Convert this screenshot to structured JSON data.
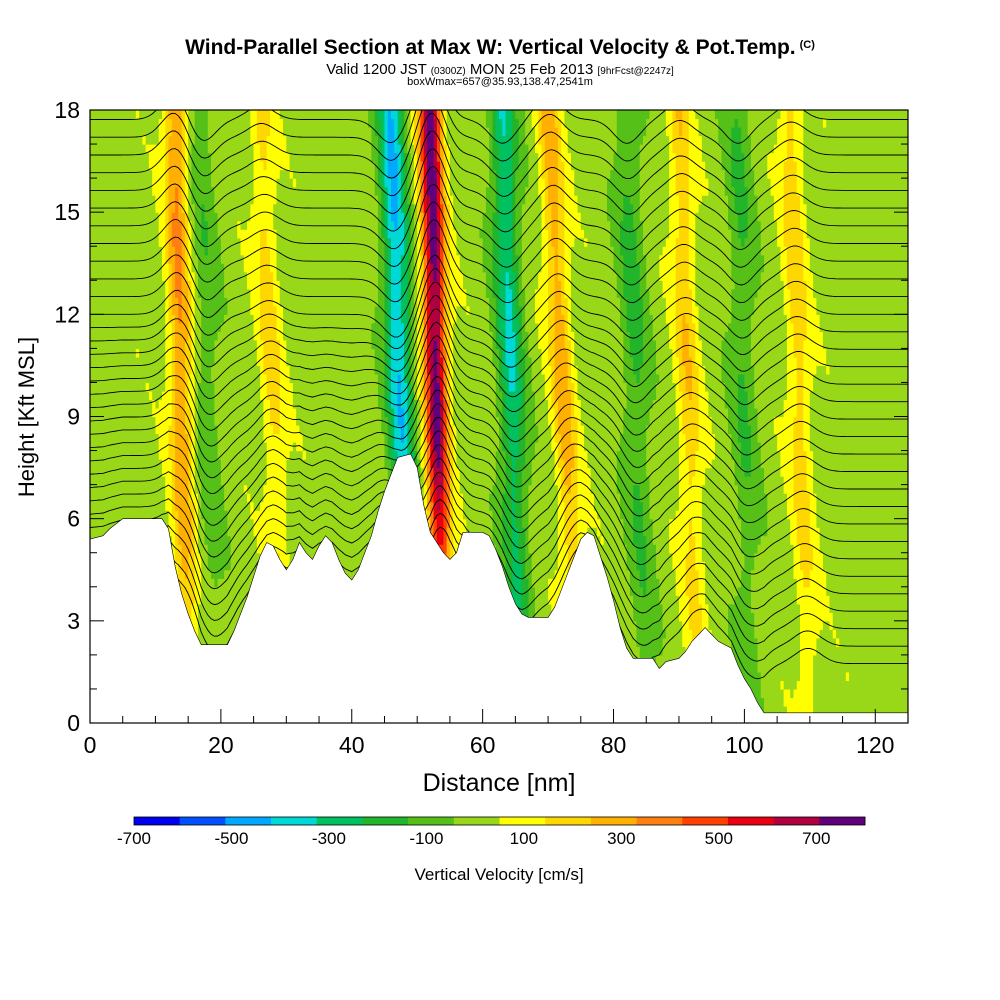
{
  "titles": {
    "main": "Wind-Parallel Section at Max W: Vertical Velocity & Pot.Temp.",
    "copyright": "(C)",
    "valid_prefix": "Valid 1200 JST",
    "valid_utc": "(0300Z)",
    "valid_date": "MON 25 Feb 2013",
    "forecast": "[9hrFcst@2247z]",
    "box_info": "boxWmax=657@35.93,138.47,2541m"
  },
  "chart_data": {
    "type": "heatmap",
    "xlabel": "Distance [nm]",
    "ylabel": "Height [Kft MSL]",
    "xlim": [
      0,
      125
    ],
    "ylim": [
      0,
      18
    ],
    "x_ticks": [
      0,
      20,
      40,
      60,
      80,
      100,
      120
    ],
    "y_ticks": [
      0,
      3,
      6,
      9,
      12,
      15,
      18
    ],
    "x_minor_step": 5,
    "y_minor_step": 1,
    "terrain_kft": [
      [
        0,
        5.4
      ],
      [
        2,
        5.5
      ],
      [
        3,
        5.7
      ],
      [
        5,
        6.0
      ],
      [
        11,
        6.0
      ],
      [
        12,
        5.7
      ],
      [
        13,
        4.6
      ],
      [
        14,
        3.8
      ],
      [
        15,
        3.2
      ],
      [
        16,
        2.7
      ],
      [
        17,
        2.3
      ],
      [
        21,
        2.3
      ],
      [
        22,
        2.7
      ],
      [
        23,
        3.2
      ],
      [
        24,
        3.7
      ],
      [
        25,
        4.3
      ],
      [
        26,
        4.9
      ],
      [
        27,
        5.3
      ],
      [
        28,
        5.2
      ],
      [
        29,
        4.8
      ],
      [
        30,
        4.5
      ],
      [
        31,
        4.8
      ],
      [
        32,
        5.3
      ],
      [
        33,
        5.0
      ],
      [
        34,
        4.8
      ],
      [
        35,
        5.2
      ],
      [
        36,
        5.5
      ],
      [
        37,
        5.3
      ],
      [
        38,
        4.8
      ],
      [
        39,
        4.4
      ],
      [
        40,
        4.2
      ],
      [
        41,
        4.5
      ],
      [
        42,
        5.0
      ],
      [
        43,
        5.5
      ],
      [
        44,
        6.2
      ],
      [
        45,
        6.8
      ],
      [
        46,
        7.3
      ],
      [
        47,
        7.8
      ],
      [
        49,
        7.9
      ],
      [
        50,
        7.5
      ],
      [
        51,
        6.4
      ],
      [
        52,
        5.6
      ],
      [
        53,
        5.3
      ],
      [
        54,
        5.0
      ],
      [
        55,
        4.8
      ],
      [
        56,
        5.0
      ],
      [
        57,
        5.6
      ],
      [
        60,
        5.6
      ],
      [
        61,
        5.5
      ],
      [
        62,
        5.1
      ],
      [
        63,
        4.6
      ],
      [
        64,
        4.0
      ],
      [
        65,
        3.5
      ],
      [
        66,
        3.2
      ],
      [
        67,
        3.1
      ],
      [
        70,
        3.1
      ],
      [
        71,
        3.4
      ],
      [
        72,
        3.9
      ],
      [
        73,
        4.4
      ],
      [
        74,
        4.9
      ],
      [
        75,
        5.4
      ],
      [
        76,
        5.6
      ],
      [
        77,
        5.5
      ],
      [
        78,
        4.9
      ],
      [
        79,
        4.3
      ],
      [
        80,
        3.6
      ],
      [
        81,
        2.8
      ],
      [
        82,
        2.2
      ],
      [
        83,
        1.9
      ],
      [
        86,
        1.9
      ],
      [
        87,
        1.6
      ],
      [
        88,
        1.8
      ],
      [
        90,
        1.9
      ],
      [
        91,
        2.1
      ],
      [
        92,
        2.4
      ],
      [
        93,
        2.6
      ],
      [
        94,
        2.8
      ],
      [
        95,
        2.6
      ],
      [
        96,
        2.4
      ],
      [
        98,
        2.2
      ],
      [
        99,
        1.7
      ],
      [
        100,
        1.3
      ],
      [
        101,
        1.0
      ],
      [
        102,
        0.6
      ],
      [
        103,
        0.3
      ],
      [
        104,
        0.3
      ],
      [
        125,
        0.3
      ]
    ],
    "updraft_bands": [
      {
        "x_bottom": 15,
        "x_top": 13,
        "peak_cms": 350
      },
      {
        "x_bottom": 30,
        "x_top": 26,
        "peak_cms": 180
      },
      {
        "x_bottom": 54,
        "x_top": 52,
        "peak_cms": 780
      },
      {
        "x_bottom": 75,
        "x_top": 70,
        "peak_cms": 300
      },
      {
        "x_bottom": 93,
        "x_top": 90,
        "peak_cms": 220
      },
      {
        "x_bottom": 110,
        "x_top": 107,
        "peak_cms": 200
      }
    ],
    "downdraft_bands": [
      {
        "x_bottom": 19,
        "x_top": 17,
        "min_cms": -120
      },
      {
        "x_bottom": 49,
        "x_top": 46,
        "min_cms": -450
      },
      {
        "x_bottom": 66,
        "x_top": 63,
        "min_cms": -350
      },
      {
        "x_bottom": 85,
        "x_top": 82,
        "min_cms": -180
      },
      {
        "x_bottom": 101,
        "x_top": 99,
        "min_cms": -150
      }
    ],
    "colorbar": {
      "label": "Vertical Velocity [cm/s]",
      "min": -700,
      "max": 800,
      "step": 100,
      "tick_values": [
        -700,
        -500,
        -300,
        -100,
        100,
        300,
        500,
        700
      ],
      "tick_labels": [
        "-700",
        "-500",
        "-300",
        "-100",
        "100",
        "300",
        "500",
        "700"
      ],
      "colors": [
        "#0000f0",
        "#0050ff",
        "#00a8ff",
        "#00d8d8",
        "#00c060",
        "#22b42a",
        "#55c018",
        "#99d818",
        "#ffff00",
        "#ffd700",
        "#ffb000",
        "#ff8010",
        "#ff4000",
        "#e80010",
        "#b00040",
        "#60007a"
      ]
    },
    "isentrope_count": 32
  }
}
